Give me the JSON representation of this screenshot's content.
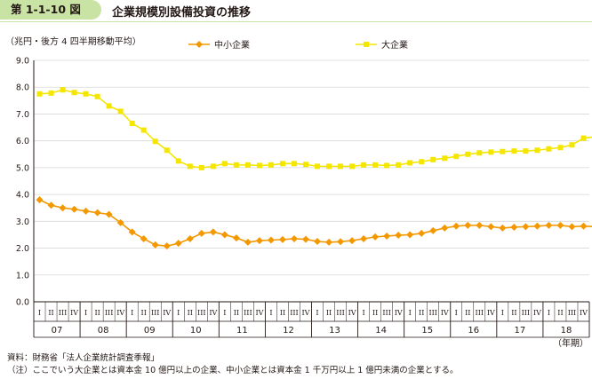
{
  "header": {
    "figure_number": "第 1-1-10 図",
    "title": "企業規模別設備投資の推移"
  },
  "notes": {
    "source": "資料：財務省「法人企業統計調査季報」",
    "note": "（注）ここでいう大企業とは資本金 10 億円以上の企業、中小企業とは資本金 1 千万円以上 1 億円未満の企業とする。"
  },
  "chart_data": {
    "type": "line",
    "unit_label": "（兆円・後方 4 四半期移動平均）",
    "x_unit_label": "（年期）",
    "ylim": [
      0,
      9
    ],
    "y_ticks": [
      "0.0",
      "1.0",
      "2.0",
      "3.0",
      "4.0",
      "5.0",
      "6.0",
      "7.0",
      "8.0",
      "9.0"
    ],
    "quarter_labels": [
      "I",
      "II",
      "III",
      "IV"
    ],
    "years": [
      "07",
      "08",
      "09",
      "10",
      "11",
      "12",
      "13",
      "14",
      "15",
      "16",
      "17",
      "18"
    ],
    "grid": "horizontal",
    "legend_position": "top",
    "colors": {
      "small": "#f39800",
      "large": "#f5e600"
    },
    "series": [
      {
        "name": "中小企業",
        "key": "small",
        "marker": "diamond",
        "end_label": "2.8",
        "values": [
          3.8,
          3.6,
          3.5,
          3.45,
          3.38,
          3.32,
          3.26,
          2.95,
          2.6,
          2.35,
          2.12,
          2.08,
          2.18,
          2.35,
          2.55,
          2.6,
          2.5,
          2.38,
          2.22,
          2.28,
          2.3,
          2.32,
          2.35,
          2.33,
          2.25,
          2.22,
          2.24,
          2.28,
          2.35,
          2.42,
          2.45,
          2.48,
          2.5,
          2.55,
          2.65,
          2.75,
          2.82,
          2.85,
          2.85,
          2.8,
          2.75,
          2.78,
          2.8,
          2.82,
          2.85,
          2.85,
          2.8,
          2.82,
          2.8,
          2.85,
          2.78
        ]
      },
      {
        "name": "大企業",
        "key": "large",
        "marker": "square",
        "end_label": "6.4",
        "values": [
          7.75,
          7.78,
          7.9,
          7.8,
          7.75,
          7.65,
          7.3,
          7.1,
          6.65,
          6.4,
          5.98,
          5.65,
          5.25,
          5.05,
          5.0,
          5.05,
          5.15,
          5.1,
          5.1,
          5.08,
          5.1,
          5.15,
          5.15,
          5.12,
          5.05,
          5.05,
          5.05,
          5.05,
          5.1,
          5.1,
          5.08,
          5.1,
          5.18,
          5.22,
          5.3,
          5.35,
          5.42,
          5.5,
          5.55,
          5.58,
          5.6,
          5.62,
          5.62,
          5.65,
          5.7,
          5.75,
          5.85,
          6.1,
          6.15,
          6.2,
          6.35
        ]
      }
    ]
  }
}
